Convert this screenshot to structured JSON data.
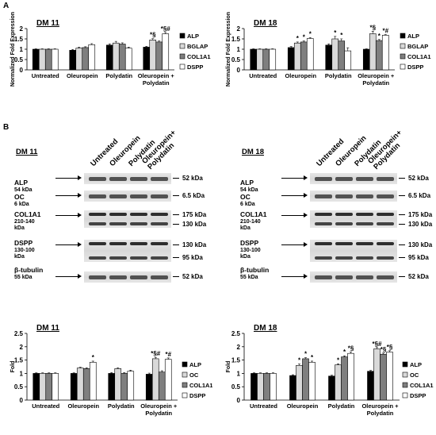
{
  "panels": {
    "a": "A",
    "b": "B"
  },
  "chart_data": [
    {
      "type": "bar",
      "title": "DM 11",
      "ylabel": "Normalized Fold Expression",
      "ylim": [
        0,
        2
      ],
      "yticks": [
        "0",
        "0.5",
        "1",
        "1.5",
        "2"
      ],
      "categories": [
        "Untreated",
        "Oleuropein",
        "Polydatin",
        "Oleuropein +\nPolydatin"
      ],
      "legend_position": "right",
      "series": [
        {
          "name": "ALP",
          "values": [
            1.0,
            0.95,
            1.2,
            1.1
          ],
          "errors": [
            0.02,
            0.04,
            0.06,
            0.04
          ],
          "annotations": [
            "",
            "",
            "",
            ""
          ]
        },
        {
          "name": "BGLAP",
          "values": [
            1.0,
            1.05,
            1.3,
            1.45
          ],
          "errors": [
            0.02,
            0.05,
            0.08,
            0.06
          ],
          "annotations": [
            "",
            "",
            "",
            "*§"
          ]
        },
        {
          "name": "COL1A1",
          "values": [
            1.0,
            1.08,
            1.25,
            1.35
          ],
          "errors": [
            0.02,
            0.04,
            0.06,
            0.05
          ],
          "annotations": [
            "",
            "",
            "",
            ""
          ]
        },
        {
          "name": "DSPP",
          "values": [
            1.0,
            1.22,
            1.05,
            1.75
          ],
          "errors": [
            0.02,
            0.05,
            0.05,
            0.06
          ],
          "annotations": [
            "",
            "",
            "",
            "*§#"
          ]
        }
      ]
    },
    {
      "type": "bar",
      "title": "DM 18",
      "ylabel": "Normalized Fold Expression",
      "ylim": [
        0,
        2
      ],
      "yticks": [
        "0",
        "0.5",
        "1",
        "1.5",
        "2"
      ],
      "categories": [
        "Untreated",
        "Oleuropein",
        "Polydatin",
        "Oleuropein +\nPolydatin"
      ],
      "legend_position": "right",
      "series": [
        {
          "name": "ALP",
          "values": [
            1.0,
            1.08,
            1.2,
            1.0
          ],
          "errors": [
            0.02,
            0.05,
            0.06,
            0.02
          ],
          "annotations": [
            "",
            "",
            "",
            ""
          ]
        },
        {
          "name": "BGLAP",
          "values": [
            1.0,
            1.3,
            1.5,
            1.75
          ],
          "errors": [
            0.02,
            0.05,
            0.12,
            0.12
          ],
          "annotations": [
            "",
            "*",
            "*",
            "*§"
          ]
        },
        {
          "name": "COL1A1",
          "values": [
            1.0,
            1.35,
            1.4,
            1.42
          ],
          "errors": [
            0.02,
            0.05,
            0.1,
            0.05
          ],
          "annotations": [
            "",
            "*",
            "*",
            "*"
          ]
        },
        {
          "name": "DSPP",
          "values": [
            1.0,
            1.52,
            0.92,
            1.68
          ],
          "errors": [
            0.02,
            0.04,
            0.15,
            0.03
          ],
          "annotations": [
            "",
            "*",
            "",
            "*#"
          ]
        }
      ]
    },
    {
      "type": "bar",
      "title": "DM 11",
      "ylabel": "Fold",
      "ylim": [
        0,
        2.5
      ],
      "yticks": [
        "0",
        "0.5",
        "1",
        "1.5",
        "2",
        "2.5"
      ],
      "categories": [
        "Untreated",
        "Oleuropein",
        "Polydatin",
        "Oleuropein +\nPolydatin"
      ],
      "legend_position": "right",
      "series": [
        {
          "name": "ALP",
          "values": [
            1.0,
            1.0,
            1.0,
            0.97
          ],
          "errors": [
            0.02,
            0.02,
            0.03,
            0.04
          ],
          "annotations": [
            "",
            "",
            "",
            ""
          ]
        },
        {
          "name": "OC",
          "values": [
            1.0,
            1.2,
            1.18,
            1.55
          ],
          "errors": [
            0.02,
            0.03,
            0.03,
            0.05
          ],
          "annotations": [
            "",
            "",
            "",
            "*§#"
          ]
        },
        {
          "name": "COL1A1",
          "values": [
            1.0,
            1.18,
            1.0,
            1.05
          ],
          "errors": [
            0.02,
            0.03,
            0.03,
            0.05
          ],
          "annotations": [
            "",
            "",
            "",
            ""
          ]
        },
        {
          "name": "DSPP",
          "values": [
            1.0,
            1.42,
            1.08,
            1.53
          ],
          "errors": [
            0.02,
            0.04,
            0.04,
            0.05
          ],
          "annotations": [
            "",
            "*",
            "",
            "*#"
          ]
        }
      ]
    },
    {
      "type": "bar",
      "title": "DM 18",
      "ylabel": "Fold",
      "ylim": [
        0,
        2.5
      ],
      "yticks": [
        "0",
        "0.5",
        "1",
        "1.5",
        "2",
        "2.5"
      ],
      "categories": [
        "Untreated",
        "Oleuropein",
        "Polydatin",
        "Oleuropein +\nPolydatin"
      ],
      "legend_position": "right",
      "series": [
        {
          "name": "ALP",
          "values": [
            1.0,
            0.92,
            0.9,
            1.08
          ],
          "errors": [
            0.02,
            0.03,
            0.03,
            0.03
          ],
          "annotations": [
            "",
            "",
            "",
            ""
          ]
        },
        {
          "name": "OC",
          "values": [
            1.0,
            1.3,
            1.32,
            1.92
          ],
          "errors": [
            0.02,
            0.05,
            0.04,
            0.05
          ],
          "annotations": [
            "",
            "*",
            "*",
            "*§#"
          ]
        },
        {
          "name": "COL1A1",
          "values": [
            1.0,
            1.55,
            1.62,
            1.72
          ],
          "errors": [
            0.02,
            0.04,
            0.04,
            0.04
          ],
          "annotations": [
            "",
            "*",
            "*",
            "*§"
          ]
        },
        {
          "name": "DSPP",
          "values": [
            1.0,
            1.42,
            1.75,
            1.8
          ],
          "errors": [
            0.02,
            0.04,
            0.05,
            0.05
          ],
          "annotations": [
            "",
            "*",
            "*§",
            "*§"
          ]
        }
      ]
    }
  ],
  "blots": [
    {
      "title": "DM 11",
      "lanes": [
        "Untreated",
        "Oleuropein",
        "Polydatin",
        "Oleuropein+\nPolydatin"
      ],
      "proteins": [
        {
          "name": "ALP",
          "size": "54 kDa"
        },
        {
          "name": "OC",
          "size": "6 kDa"
        },
        {
          "name": "COL1A1",
          "size": "210-140\nkDa"
        },
        {
          "name": "DSPP",
          "size": "130-100\nkDa"
        },
        {
          "name": "β-tubulin",
          "size": "55 kDa"
        }
      ],
      "markers": [
        "52 kDa",
        "6.5 kDa",
        "175 kDa",
        "130 kDa",
        "130 kDa",
        "95 kDa",
        "52 kDa"
      ]
    },
    {
      "title": "DM 18",
      "lanes": [
        "Untreated",
        "Oleuropein",
        "Polydatin",
        "Oleuropein+\nPolydatin"
      ],
      "proteins": [
        {
          "name": "ALP",
          "size": "54 kDa"
        },
        {
          "name": "OC",
          "size": "6 kDa"
        },
        {
          "name": "COL1A1",
          "size": "210-140\nkDa"
        },
        {
          "name": "DSPP",
          "size": "130-100\nkDa"
        },
        {
          "name": "β-tubulin",
          "size": "55 kDa"
        }
      ],
      "markers": [
        "52 kDa",
        "6.5 kDa",
        "175 kDa",
        "130 kDa",
        "130 kDa",
        "95 kDa",
        "52 kDa"
      ]
    }
  ],
  "colors": {
    "ALP": "#000000",
    "S2": "#d9d9d9",
    "COL1A1": "#7f7f7f",
    "DSPP": "#ffffff"
  }
}
